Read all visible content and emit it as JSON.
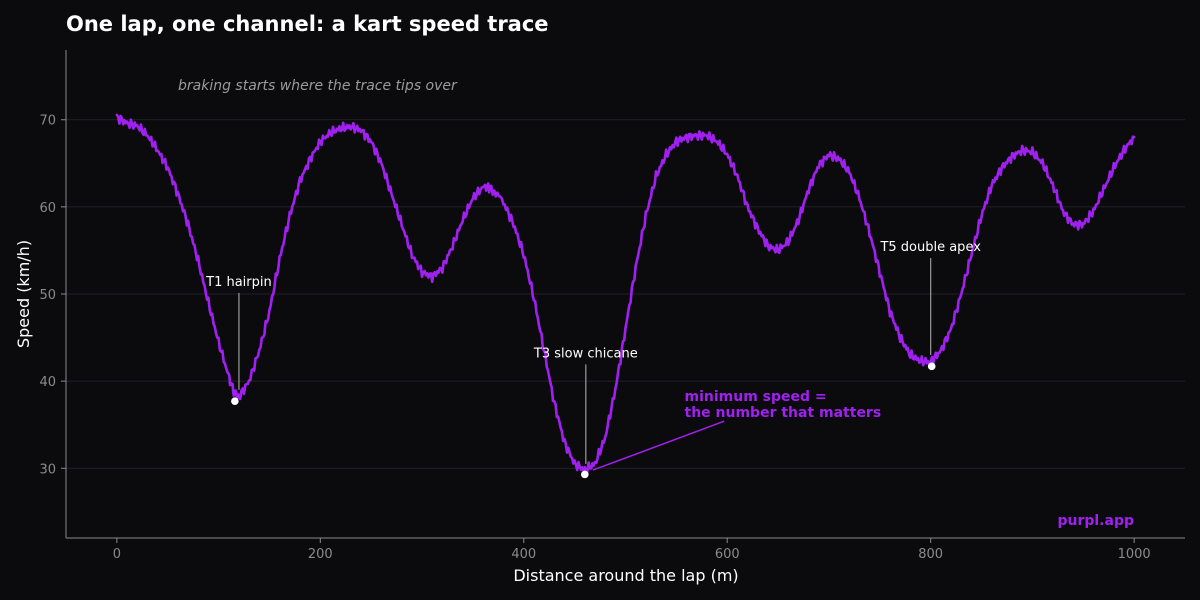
{
  "chart_data": {
    "type": "line",
    "title": "One lap, one channel: a kart speed trace",
    "subtitle": "braking starts where the trace tips over",
    "xlabel": "Distance around the lap (m)",
    "ylabel": "Speed (km/h)",
    "xlim": [
      -50,
      1050
    ],
    "ylim": [
      22,
      78
    ],
    "xticks": [
      0,
      200,
      400,
      600,
      800,
      1000
    ],
    "yticks": [
      30,
      40,
      50,
      60,
      70
    ],
    "grid": "horizontal",
    "series": [
      {
        "color": "#a020f0",
        "x": [
          0,
          10,
          20,
          30,
          40,
          50,
          60,
          70,
          80,
          90,
          100,
          110,
          115,
          120,
          130,
          140,
          150,
          160,
          170,
          180,
          190,
          200,
          210,
          220,
          230,
          240,
          250,
          260,
          270,
          280,
          290,
          300,
          310,
          320,
          330,
          340,
          350,
          360,
          368,
          380,
          390,
          400,
          410,
          420,
          430,
          440,
          450,
          460,
          470,
          480,
          490,
          500,
          510,
          520,
          530,
          540,
          550,
          560,
          570,
          580,
          590,
          600,
          610,
          620,
          630,
          640,
          650,
          660,
          670,
          680,
          690,
          700,
          710,
          720,
          730,
          740,
          750,
          760,
          770,
          780,
          790,
          800,
          810,
          820,
          830,
          840,
          850,
          860,
          870,
          880,
          890,
          900,
          910,
          920,
          930,
          940,
          950,
          960,
          970,
          980,
          990,
          1000
        ],
        "y": [
          70.3,
          69.6,
          69.3,
          68.2,
          66.5,
          64.5,
          61.5,
          58,
          53.8,
          49,
          44.5,
          40.5,
          38.8,
          38.2,
          40,
          43.5,
          48,
          54,
          59,
          63,
          65.5,
          67.5,
          68.5,
          69,
          69.2,
          68.8,
          67.5,
          65,
          61.5,
          58,
          54.5,
          52.5,
          52,
          53,
          55.5,
          58.5,
          61,
          62.3,
          62.2,
          60.5,
          58,
          54.5,
          49.5,
          43.5,
          37.5,
          33,
          30.5,
          29.8,
          30.5,
          33.5,
          39,
          46,
          53,
          59,
          63.5,
          66,
          67.5,
          68,
          68.2,
          68.2,
          67.5,
          66,
          63.5,
          60,
          57.5,
          55.5,
          55,
          56,
          58.5,
          62,
          64.8,
          66,
          65.5,
          64,
          61,
          57,
          52.5,
          48,
          45,
          43,
          42.3,
          42.2,
          43.5,
          46,
          50,
          54.5,
          59,
          62.5,
          64.5,
          65.8,
          66.5,
          66.3,
          65,
          62.5,
          59.5,
          58,
          58,
          59.5,
          62,
          64.5,
          66.5,
          68
        ]
      }
    ],
    "points": [
      {
        "x": 116,
        "y": 37.7
      },
      {
        "x": 460,
        "y": 29.3
      },
      {
        "x": 801,
        "y": 41.7
      }
    ],
    "annotations": [
      {
        "text": "T1 hairpin",
        "x": 120,
        "y": 51.5,
        "target_x": 120,
        "target_y": 39
      },
      {
        "text": "T3 slow chicane",
        "x": 461,
        "y": 43.3,
        "target_x": 461,
        "target_y": 30.5
      },
      {
        "text": "T5 double apex",
        "x": 800,
        "y": 55.5,
        "target_x": 800,
        "target_y": 43
      }
    ],
    "callout": {
      "lines": [
        "minimum speed =",
        "the number that matters"
      ],
      "x": 558,
      "y": 37.7,
      "arrow_from": [
        597,
        35.4
      ],
      "arrow_to": [
        468,
        29.8
      ]
    },
    "watermark": "purpl.app",
    "colors": {
      "background": "#0b0b0e",
      "line": "#a020f0",
      "grid": "#2a2a2f",
      "axis": "#8a8a8a",
      "text": "#ffffff",
      "subtitle": "#9a9a9a"
    }
  }
}
